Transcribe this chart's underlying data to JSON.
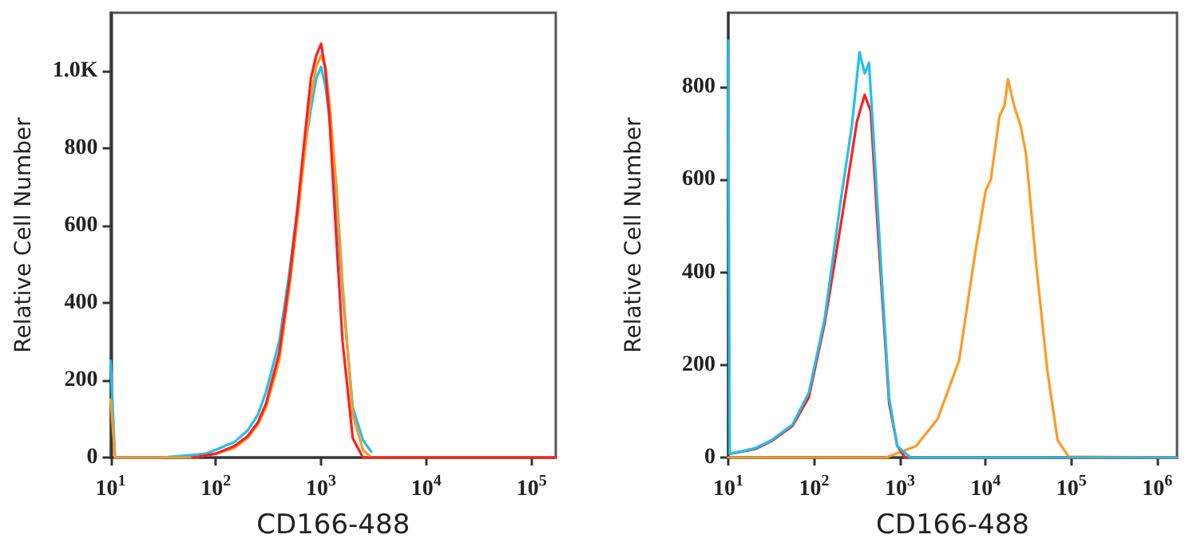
{
  "chart_data": [
    {
      "type": "line",
      "xlabel": "CD166-488",
      "ylabel": "Relative Cell Number",
      "log": "x",
      "xlim": [
        10,
        170000
      ],
      "ylim": [
        0,
        1150
      ],
      "xticks": [
        {
          "value": 10,
          "label": "10$^{1}$"
        },
        {
          "value": 100,
          "label": "10$^{2}$"
        },
        {
          "value": 1000,
          "label": "10$^{3}$"
        },
        {
          "value": 10000,
          "label": "10$^{4}$"
        },
        {
          "value": 100000,
          "label": "10$^{5}$"
        }
      ],
      "yticks": [
        0,
        200,
        400,
        600,
        800,
        {
          "value": 1000,
          "label": "1.0K"
        }
      ],
      "grid": false,
      "marker": "none",
      "line_style": "solid",
      "series": [
        {
          "color": "#22c0ec",
          "x": [
            10,
            11,
            30,
            50,
            80,
            100,
            150,
            200,
            250,
            300,
            400,
            500,
            600,
            700,
            800,
            900,
            1000,
            1100,
            1200,
            1400,
            1600,
            2000,
            2500,
            3000
          ],
          "values": [
            250,
            0,
            0,
            5,
            10,
            20,
            40,
            70,
            110,
            170,
            300,
            480,
            650,
            800,
            900,
            980,
            1010,
            960,
            880,
            650,
            420,
            130,
            45,
            15
          ]
        },
        {
          "color": "#ff9a22",
          "x": [
            10,
            11,
            60,
            100,
            150,
            200,
            250,
            300,
            400,
            500,
            600,
            700,
            800,
            900,
            1000,
            1100,
            1200,
            1400,
            1600,
            2000,
            2500,
            3000,
            170000
          ],
          "values": [
            150,
            0,
            0,
            10,
            25,
            50,
            85,
            130,
            250,
            440,
            620,
            790,
            930,
            1010,
            1040,
            1010,
            920,
            700,
            450,
            110,
            20,
            0,
            0
          ]
        },
        {
          "color": "#ff1f1f",
          "x": [
            60,
            100,
            150,
            200,
            250,
            300,
            400,
            500,
            600,
            700,
            800,
            900,
            1000,
            1100,
            1200,
            1400,
            1600,
            2000,
            2500,
            170000
          ],
          "values": [
            0,
            10,
            30,
            55,
            90,
            140,
            270,
            460,
            650,
            830,
            980,
            1040,
            1070,
            1000,
            880,
            560,
            300,
            50,
            0,
            0
          ]
        }
      ]
    },
    {
      "type": "line",
      "xlabel": "CD166-488",
      "ylabel": "Relative Cell Number",
      "log": "x",
      "xlim": [
        10,
        1700000
      ],
      "ylim": [
        0,
        960
      ],
      "xticks": [
        {
          "value": 10,
          "label": "10$^{1}$"
        },
        {
          "value": 100,
          "label": "10$^{2}$"
        },
        {
          "value": 1000,
          "label": "10$^{3}$"
        },
        {
          "value": 10000,
          "label": "10$^{4}$"
        },
        {
          "value": 100000,
          "label": "10$^{5}$"
        },
        {
          "value": 1000000,
          "label": "10$^{6}$"
        }
      ],
      "yticks": [
        0,
        200,
        400,
        600,
        800
      ],
      "grid": false,
      "marker": "none",
      "line_style": "solid",
      "series": [
        {
          "color": "#ff9a22",
          "x": [
            10,
            690,
            1550,
            2750,
            4900,
            7500,
            10000,
            11500,
            14500,
            16600,
            18200,
            21400,
            25700,
            29500,
            38900,
            52500,
            69000,
            93000,
            1700000
          ],
          "values": [
            0,
            0,
            25,
            83,
            209,
            438,
            576,
            600,
            737,
            760,
            817,
            760,
            714,
            656,
            415,
            186,
            37,
            2,
            0
          ]
        },
        {
          "color": "#ff1f1f",
          "x": [
            10.4,
            20.4,
            31.6,
            56,
            87,
            133,
            204,
            237,
            316,
            389,
            457,
            562,
            750,
            933,
            1150,
            1700000
          ],
          "values": [
            8,
            18,
            35,
            68,
            130,
            290,
            500,
            576,
            725,
            783,
            748,
            473,
            117,
            25,
            0,
            0
          ]
        },
        {
          "color": "#22c0ec",
          "x": [
            10,
            10.4,
            20.4,
            31.6,
            56,
            87,
            133,
            204,
            275,
            339,
            389,
            437,
            490,
            603,
            750,
            933,
            1330,
            1700000
          ],
          "values": [
            900,
            8,
            20,
            37,
            71,
            140,
            300,
            553,
            714,
            875,
            829,
            852,
            702,
            415,
            129,
            25,
            0,
            0
          ]
        }
      ]
    }
  ]
}
